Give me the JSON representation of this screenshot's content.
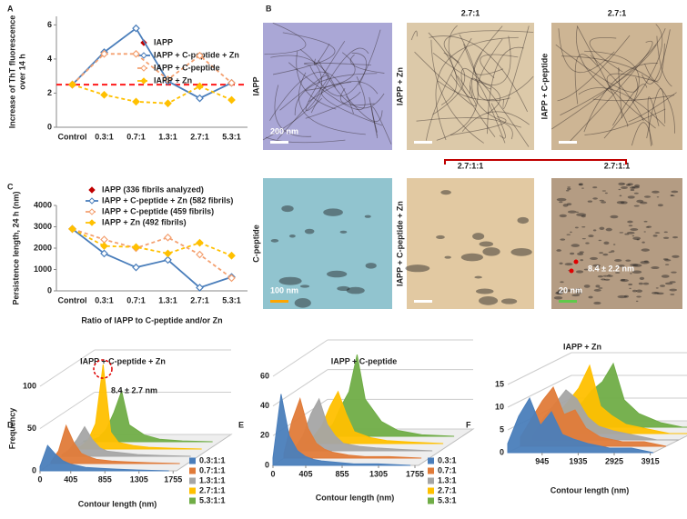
{
  "panel_labels": [
    "A",
    "B",
    "C",
    "D",
    "E",
    "F"
  ],
  "chart_data": [
    {
      "type": "line",
      "ylabel": [
        "Increase of ThT fluorescence",
        "over 14 h"
      ],
      "categories": [
        "Control",
        "0.3:1",
        "0.7:1",
        "1.3:1",
        "2.7:1",
        "5.3:1"
      ],
      "ylim": [
        0,
        6.5
      ],
      "yticks": [
        0,
        2,
        4,
        6
      ],
      "reference_line": {
        "value": 2.5,
        "color": "#ff1a1a"
      },
      "series": [
        {
          "name": "IAPP",
          "color": "#c00000",
          "line_style": "none",
          "hollow": false,
          "values": [
            2.5,
            null,
            null,
            null,
            null,
            null
          ]
        },
        {
          "name": "IAPP + C-peptide + Zn",
          "color": "#4a7ebb",
          "line_style": "solid",
          "hollow": true,
          "values": [
            2.5,
            4.4,
            5.8,
            2.7,
            1.7,
            2.6
          ]
        },
        {
          "name": "IAPP + C-peptide",
          "color": "#f4a070",
          "line_style": "dashed",
          "hollow": true,
          "values": [
            2.5,
            4.3,
            4.3,
            2.8,
            4.2,
            2.6
          ]
        },
        {
          "name": "IAPP + Zn",
          "color": "#ffc000",
          "line_style": "dashed",
          "hollow": false,
          "values": [
            2.5,
            1.9,
            1.5,
            1.4,
            2.4,
            1.6
          ]
        }
      ]
    },
    {
      "type": "line",
      "ylabel": [
        "Persistence length, 24 h (nm)"
      ],
      "xlabel": "Ratio of IAPP to C-peptide and/or Zn",
      "categories": [
        "Control",
        "0.3:1",
        "0.7:1",
        "1.3:1",
        "2.7:1",
        "5.3:1"
      ],
      "ylim": [
        0,
        4000
      ],
      "yticks": [
        0,
        1000,
        2000,
        3000,
        4000
      ],
      "series": [
        {
          "name": "IAPP (336 fibrils analyzed)",
          "color": "#c00000",
          "line_style": "none",
          "hollow": false,
          "values": [
            2900,
            null,
            null,
            null,
            null,
            null
          ]
        },
        {
          "name": "IAPP + C-peptide + Zn (582 fibrils)",
          "color": "#4a7ebb",
          "line_style": "solid",
          "hollow": true,
          "values": [
            2900,
            1750,
            1100,
            1450,
            150,
            650
          ]
        },
        {
          "name": "IAPP + C-peptide (459 fibrils)",
          "color": "#f4a070",
          "line_style": "dashed",
          "hollow": true,
          "values": [
            2900,
            2400,
            2000,
            2500,
            1700,
            600
          ]
        },
        {
          "name": "IAPP + Zn (492 fibrils)",
          "color": "#ffc000",
          "line_style": "dashed",
          "hollow": false,
          "values": [
            2900,
            2100,
            2050,
            1750,
            2250,
            1650
          ]
        }
      ]
    },
    {
      "type": "ridge3d",
      "title": "IAPP + C-peptide + Zn",
      "ylabel": "Frequency",
      "xlabel": "Contour length (nm)",
      "annotation": "8.4 ± 2.7 nm",
      "xlim": [
        0,
        1800
      ],
      "xticks": [
        0,
        405,
        855,
        1305,
        1755
      ],
      "ylim": [
        0,
        100
      ],
      "yticks": [
        0,
        50,
        100
      ],
      "x": [
        0,
        100,
        200,
        300,
        400,
        500,
        600,
        800,
        1000,
        1300,
        1700
      ],
      "series": [
        {
          "name": "0.3:1:1",
          "color": "#4a7ebb",
          "values": [
            5,
            30,
            20,
            12,
            8,
            6,
            4,
            3,
            2,
            1,
            0
          ]
        },
        {
          "name": "0.7:1:1",
          "color": "#e07b39",
          "values": [
            2,
            15,
            45,
            25,
            12,
            8,
            5,
            3,
            2,
            1,
            0
          ]
        },
        {
          "name": "1.3:1:1",
          "color": "#a5a5a5",
          "values": [
            2,
            8,
            20,
            35,
            20,
            10,
            6,
            4,
            2,
            1,
            0
          ]
        },
        {
          "name": "2.7:1:1",
          "color": "#ffc000",
          "values": [
            1,
            3,
            10,
            30,
            100,
            20,
            8,
            4,
            2,
            1,
            0
          ]
        },
        {
          "name": "5.3:1:1",
          "color": "#70ad47",
          "values": [
            1,
            2,
            5,
            15,
            35,
            60,
            20,
            8,
            3,
            1,
            0
          ]
        }
      ]
    },
    {
      "type": "ridge3d",
      "title": "IAPP + C-peptide",
      "xlabel": "Contour length (nm)",
      "xlim": [
        0,
        1800
      ],
      "xticks": [
        0,
        405,
        855,
        1305,
        1755
      ],
      "ylim": [
        0,
        60
      ],
      "yticks": [
        0,
        20,
        40,
        60
      ],
      "x": [
        0,
        100,
        200,
        300,
        400,
        500,
        600,
        800,
        1000,
        1300,
        1700
      ],
      "series": [
        {
          "name": "0.3:1",
          "color": "#4a7ebb",
          "values": [
            5,
            48,
            20,
            10,
            6,
            4,
            3,
            2,
            1,
            1,
            0
          ]
        },
        {
          "name": "0.7:1",
          "color": "#e07b39",
          "values": [
            3,
            25,
            40,
            20,
            10,
            6,
            4,
            2,
            1,
            1,
            0
          ]
        },
        {
          "name": "1.3:1",
          "color": "#a5a5a5",
          "values": [
            2,
            10,
            25,
            35,
            18,
            10,
            5,
            3,
            2,
            1,
            0
          ]
        },
        {
          "name": "2.7:1",
          "color": "#ffc000",
          "values": [
            1,
            5,
            12,
            25,
            35,
            20,
            8,
            4,
            2,
            1,
            0
          ]
        },
        {
          "name": "5.3:1",
          "color": "#70ad47",
          "values": [
            1,
            3,
            8,
            20,
            30,
            55,
            25,
            10,
            4,
            1,
            0
          ]
        }
      ]
    },
    {
      "type": "ridge3d",
      "title": "IAPP + Zn",
      "xlabel": "Contour length (nm)",
      "xlim": [
        0,
        4000
      ],
      "xticks": [
        945,
        1935,
        2925,
        3915
      ],
      "ylim": [
        0,
        16
      ],
      "yticks": [
        0,
        5,
        10,
        15
      ],
      "x": [
        0,
        300,
        600,
        900,
        1200,
        1500,
        1800,
        2200,
        2800,
        3400,
        4000
      ],
      "series": [
        {
          "color": "#4a7ebb",
          "values": [
            2,
            8,
            12,
            6,
            9,
            4,
            3,
            2,
            1,
            1,
            0
          ]
        },
        {
          "color": "#e07b39",
          "values": [
            2,
            6,
            10,
            13,
            7,
            8,
            4,
            2,
            1,
            1,
            0
          ]
        },
        {
          "color": "#a5a5a5",
          "values": [
            1,
            5,
            8,
            11,
            9,
            5,
            3,
            2,
            1,
            0,
            0
          ]
        },
        {
          "color": "#ffc000",
          "values": [
            1,
            4,
            7,
            10,
            15,
            6,
            4,
            2,
            1,
            0,
            0
          ]
        },
        {
          "color": "#70ad47",
          "values": [
            1,
            3,
            5,
            8,
            10,
            14,
            6,
            3,
            1,
            0,
            0
          ]
        }
      ]
    }
  ],
  "micrographs": {
    "images": [
      {
        "label": "IAPP",
        "scale_bar": "200 nm",
        "bar_color": "#ffffff",
        "color": "#aaa7d6",
        "texture": "fibrils"
      },
      {
        "ratio": "2.7:1",
        "label": "IAPP + Zn",
        "bar_color": "#ffffff",
        "color": "#dcc9a9",
        "texture": "fibrils"
      },
      {
        "ratio": "2.7:1",
        "label": "IAPP + C-peptide",
        "bar_color": "#ffffff",
        "color": "#cdb594",
        "texture": "fibrils"
      },
      {
        "label": "C-peptide",
        "scale_bar": "100 nm",
        "bar_color": "#ffa500",
        "color": "#91c4cf",
        "texture": "blobs"
      },
      {
        "ratio": "2.7:1:1",
        "label": "IAPP + C-peptide + Zn",
        "bar_color": "#ffffff",
        "color": "#e2c9a2",
        "texture": "blobs"
      },
      {
        "ratio": "2.7:1:1",
        "scale_bar": "20 nm",
        "bar_color": "#5fc94a",
        "color": "#b49c83",
        "texture": "grain",
        "annotation": "8.4 ± 2.2 nm"
      }
    ],
    "bracket_color": "#c00000"
  }
}
